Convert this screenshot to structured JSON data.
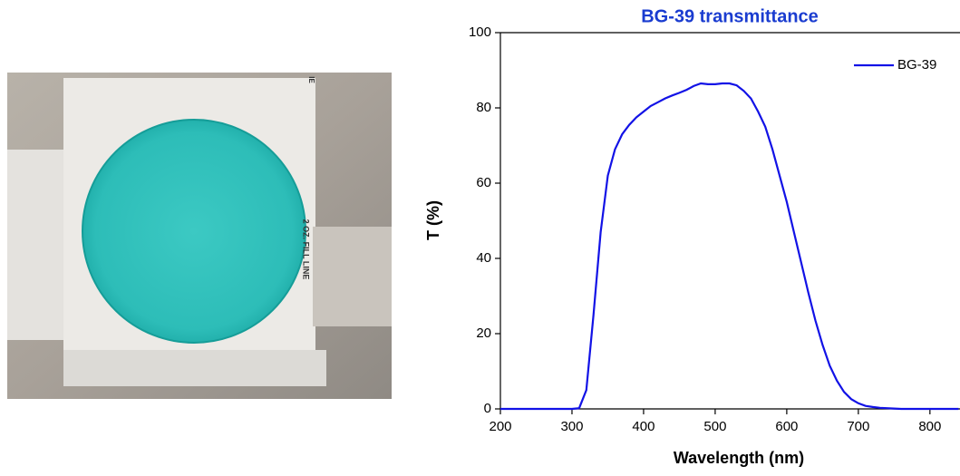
{
  "photo": {
    "labels": [
      "2 OZ. FILL LINE",
      "IE"
    ]
  },
  "chart_data": {
    "type": "line",
    "title": "BG-39 transmittance",
    "title_color": "#1a3cd0",
    "x_label": "Wavelength (nm)",
    "y_label": "T (%)",
    "x": [
      200,
      210,
      220,
      230,
      240,
      250,
      260,
      270,
      280,
      290,
      300,
      310,
      320,
      330,
      340,
      350,
      360,
      370,
      380,
      390,
      400,
      410,
      420,
      430,
      440,
      450,
      460,
      470,
      480,
      490,
      500,
      510,
      520,
      530,
      540,
      550,
      560,
      570,
      580,
      590,
      600,
      610,
      620,
      630,
      640,
      650,
      660,
      670,
      680,
      690,
      700,
      710,
      720,
      730,
      740,
      750,
      760,
      770,
      780,
      790,
      800,
      810,
      820,
      830,
      840
    ],
    "series": [
      {
        "name": "BG-39",
        "color": "#1212e6",
        "values": [
          0,
          0,
          0,
          0,
          0,
          0,
          0,
          0,
          0,
          0,
          0,
          0.2,
          5,
          25,
          47,
          62,
          69,
          73,
          75.5,
          77.5,
          79,
          80.5,
          81.5,
          82.5,
          83.3,
          84,
          84.8,
          85.8,
          86.5,
          86.3,
          86.3,
          86.5,
          86.5,
          86,
          84.5,
          82.5,
          79,
          75,
          69,
          62,
          55,
          47,
          39,
          31,
          23.5,
          17,
          11.5,
          7.5,
          4.5,
          2.6,
          1.5,
          0.8,
          0.5,
          0.3,
          0.2,
          0.1,
          0,
          0,
          0,
          0,
          0,
          0,
          0,
          0,
          0
        ]
      }
    ],
    "xlim": [
      200,
      842
    ],
    "ylim": [
      0,
      100
    ],
    "xticks": [
      200,
      300,
      400,
      500,
      600,
      700,
      800
    ],
    "yticks": [
      0,
      20,
      40,
      60,
      80,
      100
    ],
    "legend": "top-right"
  }
}
